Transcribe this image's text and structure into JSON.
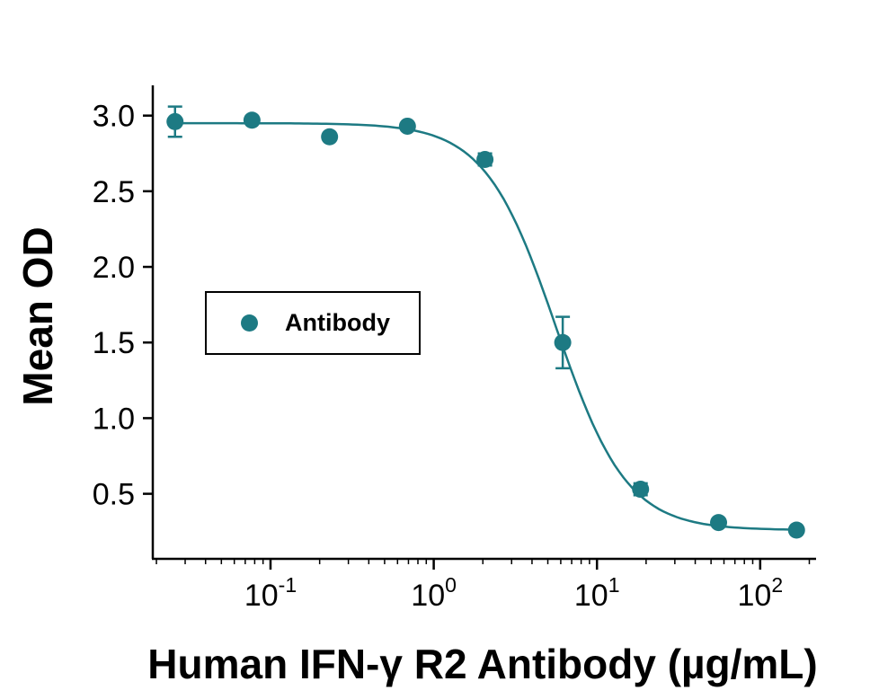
{
  "chart_data": {
    "type": "scatter",
    "title": "",
    "xlabel": "Human IFN-γ R2 Antibody (µg/mL)",
    "ylabel": "Mean OD",
    "x_scale": "log10",
    "xlim": [
      0.019,
      220
    ],
    "ylim": [
      0.07,
      3.2
    ],
    "grid": "off",
    "x_major_tick_exponents": [
      -1,
      0,
      1,
      2
    ],
    "x_tick_base": "10",
    "y_ticks": [
      0.5,
      1.0,
      1.5,
      2.0,
      2.5,
      3.0
    ],
    "y_tick_labels": [
      "0.5",
      "1.0",
      "1.5",
      "2.0",
      "2.5",
      "3.0"
    ],
    "legend": {
      "label": "Antibody",
      "position": "middle-left"
    },
    "series": [
      {
        "name": "Antibody",
        "x": [
          0.026,
          0.077,
          0.23,
          0.69,
          2.06,
          6.17,
          18.5,
          55.6,
          167
        ],
        "y": [
          2.96,
          2.97,
          2.86,
          2.93,
          2.71,
          1.5,
          0.53,
          0.31,
          0.26
        ],
        "yerr": [
          0.1,
          0.02,
          0.02,
          0.02,
          0.04,
          0.17,
          0.04,
          0.01,
          0.01
        ]
      }
    ],
    "fit": {
      "model": "4PL",
      "top": 2.95,
      "bottom": 0.26,
      "ec50": 5.6,
      "hill": 2.0
    },
    "colors": {
      "point": "#1d7a83",
      "curve": "#1d7a83",
      "axis": "#000000",
      "text": "#000000"
    }
  }
}
